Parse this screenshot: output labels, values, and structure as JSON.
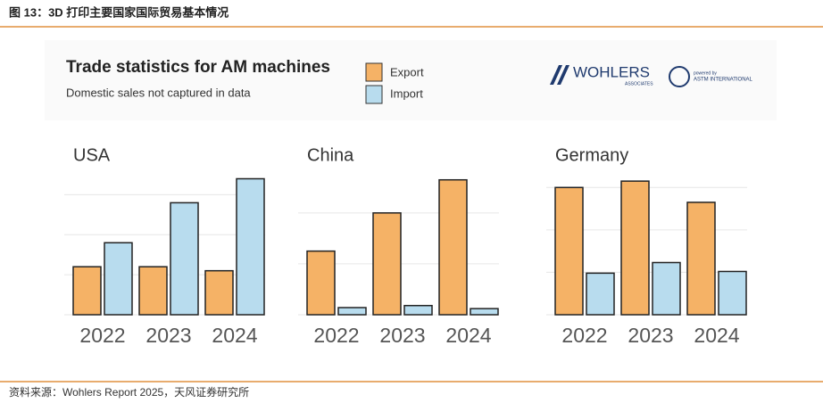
{
  "header": {
    "title": "图 13：3D 打印主要国家国际贸易基本情况"
  },
  "panel": {
    "title": "Trade statistics for AM machines",
    "subtitle": "Domestic sales not captured in data",
    "logo_left": "WOHLERS",
    "logo_left_sub": "ASSOCIATES",
    "logo_right_top": "powered by",
    "logo_right": "ASTM INTERNATIONAL"
  },
  "chart_data": [
    {
      "type": "bar",
      "title": "USA",
      "categories": [
        "2022",
        "2023",
        "2024"
      ],
      "series": [
        {
          "name": "Export",
          "color": "#f5b266",
          "values": [
            1.2,
            1.2,
            1.1
          ]
        },
        {
          "name": "Import",
          "color": "#b8dcee",
          "values": [
            1.8,
            2.8,
            3.4
          ]
        }
      ],
      "ylim": [
        0,
        3.5
      ],
      "yticks": [
        0,
        1,
        2,
        3
      ],
      "grid": true
    },
    {
      "type": "bar",
      "title": "China",
      "categories": [
        "2022",
        "2023",
        "2024"
      ],
      "series": [
        {
          "name": "Export",
          "color": "#f5b266",
          "values": [
            1.25,
            2.0,
            2.65
          ]
        },
        {
          "name": "Import",
          "color": "#b8dcee",
          "values": [
            0.14,
            0.18,
            0.12
          ]
        }
      ],
      "ylim": [
        0,
        2.75
      ],
      "yticks": [
        0,
        1,
        2
      ],
      "grid": true
    },
    {
      "type": "bar",
      "title": "Germany",
      "categories": [
        "2022",
        "2023",
        "2024"
      ],
      "series": [
        {
          "name": "Export",
          "color": "#f5b266",
          "values": [
            3.0,
            3.15,
            2.65
          ]
        },
        {
          "name": "Import",
          "color": "#b8dcee",
          "values": [
            0.98,
            1.23,
            1.02
          ]
        }
      ],
      "ylim": [
        0,
        3.3
      ],
      "yticks": [
        0,
        1,
        2,
        3
      ],
      "grid": true
    }
  ],
  "footer": {
    "source": "资料来源：Wohlers Report 2025，天风证券研究所"
  }
}
